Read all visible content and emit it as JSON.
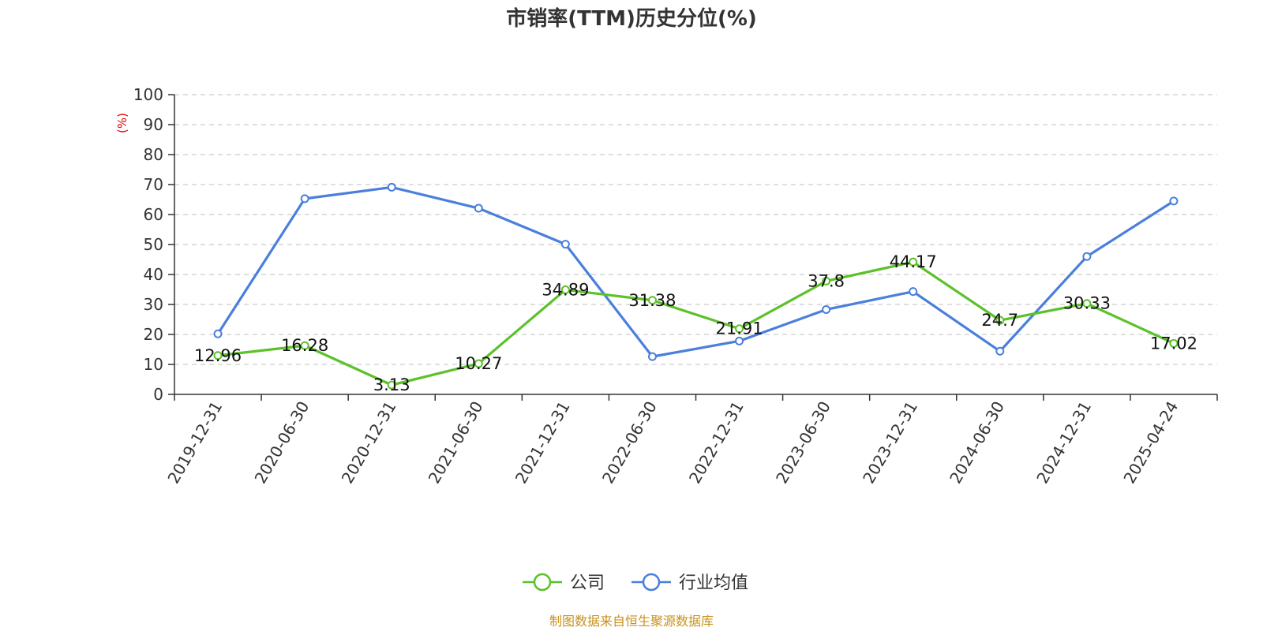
{
  "chart_data": {
    "type": "line",
    "title": "市销率(TTM)历史分位(%)",
    "ylabel": "(%)",
    "xlabel": "",
    "ylim": [
      0,
      100
    ],
    "yticks": [
      0,
      10,
      20,
      30,
      40,
      50,
      60,
      70,
      80,
      90,
      100
    ],
    "grid": true,
    "legend_position": "bottom-center",
    "categories": [
      "2019-12-31",
      "2020-06-30",
      "2020-12-31",
      "2021-06-30",
      "2021-12-31",
      "2022-06-30",
      "2022-12-31",
      "2023-06-30",
      "2023-12-31",
      "2024-06-30",
      "2024-12-31",
      "2025-04-24"
    ],
    "series": [
      {
        "name": "公司",
        "color": "#5cc12a",
        "values": [
          12.96,
          16.28,
          3.13,
          10.27,
          34.89,
          31.38,
          21.91,
          37.8,
          44.17,
          24.7,
          30.33,
          17.02
        ],
        "labels": [
          "12.96",
          "16.28",
          "3.13",
          "10.27",
          "34.89",
          "31.38",
          "21.91",
          "37.8",
          "44.17",
          "24.7",
          "30.33",
          "17.02"
        ]
      },
      {
        "name": "行业均值",
        "color": "#4a7fdc",
        "values": [
          20.2,
          65.3,
          69.1,
          62.1,
          50.1,
          12.6,
          17.8,
          28.3,
          34.3,
          14.4,
          46.0,
          64.5
        ]
      }
    ],
    "source": "制图数据来自恒生聚源数据库"
  }
}
